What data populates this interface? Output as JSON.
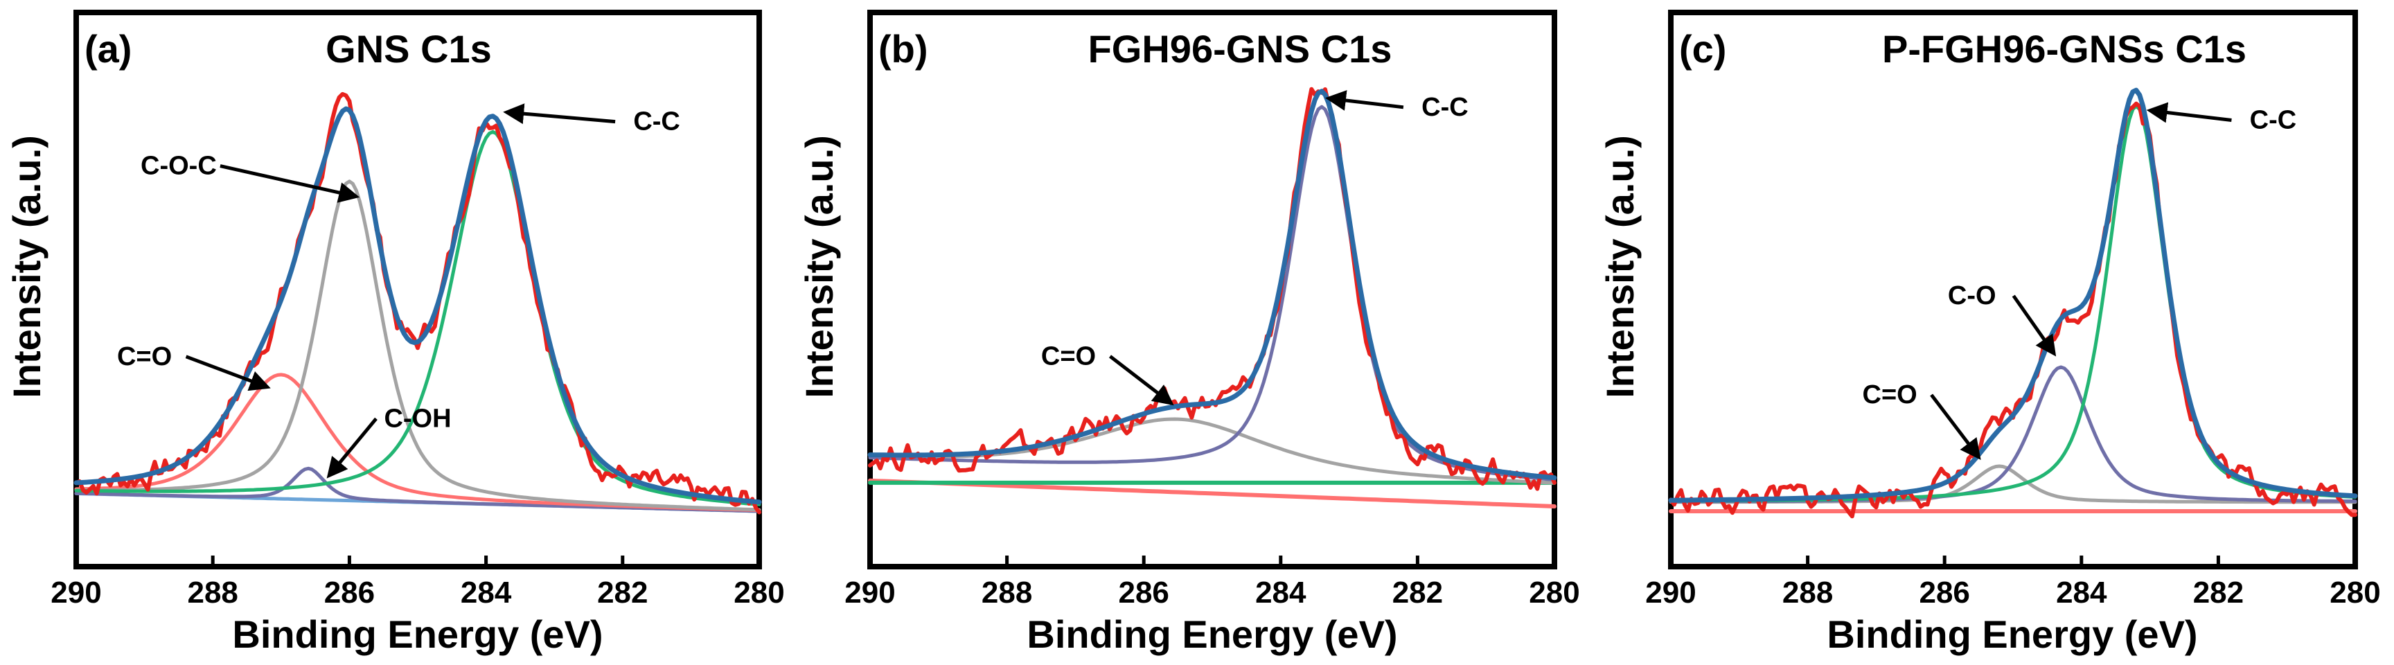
{
  "figure": {
    "xlabel": "Binding Energy (eV)",
    "ylabel": "Intensity (a.u.)"
  },
  "colors": {
    "raw": "#e8211d",
    "envelope": "#2a6ba6",
    "background": "#6ba4d8",
    "cc": "#22b573",
    "coc": "#a3a3a3",
    "co": "#ff6f6f",
    "coh": "#6f6fa8",
    "co_b": "#a3a3a3",
    "baseline_red": "#ff7070",
    "baseline_green": "#22b573",
    "cc_b": "#6f6fa8",
    "co_single": "#6f6fa8"
  },
  "chart_data": [
    {
      "type": "line",
      "panel": "(a)",
      "title": "GNS C1s",
      "xlabel": "Binding Energy (eV)",
      "ylabel": "Intensity (a.u.)",
      "xlim": [
        290,
        280
      ],
      "x_reversed": true,
      "xticks": [
        290,
        288,
        286,
        284,
        282,
        280
      ],
      "ylim": [
        0,
        1.0
      ],
      "peaks": [
        {
          "label": "C-C",
          "center": 283.9,
          "height": 0.84,
          "width": 0.72
        },
        {
          "label": "C-O-C",
          "center": 286.0,
          "height": 0.72,
          "width": 0.55
        },
        {
          "label": "C=O",
          "center": 287.0,
          "height": 0.28,
          "width": 0.8
        },
        {
          "label": "C-OH",
          "center": 286.6,
          "height": 0.07,
          "width": 0.28
        }
      ],
      "background_level": {
        "start": 0.04,
        "end": 0.0
      },
      "annotations": [
        {
          "text": "C-C",
          "tx": 281.5,
          "ty": 0.86,
          "ax": 283.7,
          "ay": 0.9
        },
        {
          "text": "C-O-C",
          "tx": 288.5,
          "ty": 0.76,
          "ax": 285.9,
          "ay": 0.71
        },
        {
          "text": "C=O",
          "tx": 289.0,
          "ty": 0.33,
          "ax": 287.2,
          "ay": 0.28
        },
        {
          "text": "C-OH",
          "tx": 285.0,
          "ty": 0.19,
          "ax": 286.3,
          "ay": 0.08
        }
      ]
    },
    {
      "type": "line",
      "panel": "(b)",
      "title": "FGH96-GNS C1s",
      "xlabel": "Binding Energy (eV)",
      "ylabel": "Intensity (a.u.)",
      "xlim": [
        290,
        280
      ],
      "x_reversed": true,
      "xticks": [
        290,
        288,
        286,
        284,
        282,
        280
      ],
      "ylim": [
        0,
        1.0
      ],
      "peaks": [
        {
          "label": "C-C",
          "center": 283.4,
          "height": 0.86,
          "width": 0.55
        },
        {
          "label": "C=O",
          "center": 285.5,
          "height": 0.12,
          "width": 1.5
        }
      ],
      "background_level": {
        "start": 0.06,
        "end": 0.0
      },
      "annotations": [
        {
          "text": "C-C",
          "tx": 281.6,
          "ty": 0.86,
          "ax": 283.3,
          "ay": 0.9
        },
        {
          "text": "C=O",
          "tx": 287.1,
          "ty": 0.28,
          "ax": 285.6,
          "ay": 0.19
        }
      ]
    },
    {
      "type": "line",
      "panel": "(c)",
      "title": "P-FGH96-GNSs C1s",
      "xlabel": "Binding Energy (eV)",
      "ylabel": "Intensity (a.u.)",
      "xlim": [
        290,
        280
      ],
      "x_reversed": true,
      "xticks": [
        290,
        288,
        286,
        284,
        282,
        280
      ],
      "ylim": [
        0,
        1.0
      ],
      "peaks": [
        {
          "label": "C-C",
          "center": 283.2,
          "height": 0.88,
          "width": 0.5
        },
        {
          "label": "C-O",
          "center": 284.3,
          "height": 0.3,
          "width": 0.5
        },
        {
          "label": "C=O",
          "center": 285.2,
          "height": 0.08,
          "width": 0.45
        }
      ],
      "background_level": {
        "start": 0.0,
        "end": 0.0
      },
      "annotations": [
        {
          "text": "C-C",
          "tx": 281.2,
          "ty": 0.83,
          "ax": 283.0,
          "ay": 0.87
        },
        {
          "text": "C-O",
          "tx": 285.6,
          "ty": 0.44,
          "ax": 284.4,
          "ay": 0.33
        },
        {
          "text": "C=O",
          "tx": 286.8,
          "ty": 0.22,
          "ax": 285.5,
          "ay": 0.1
        }
      ]
    }
  ]
}
